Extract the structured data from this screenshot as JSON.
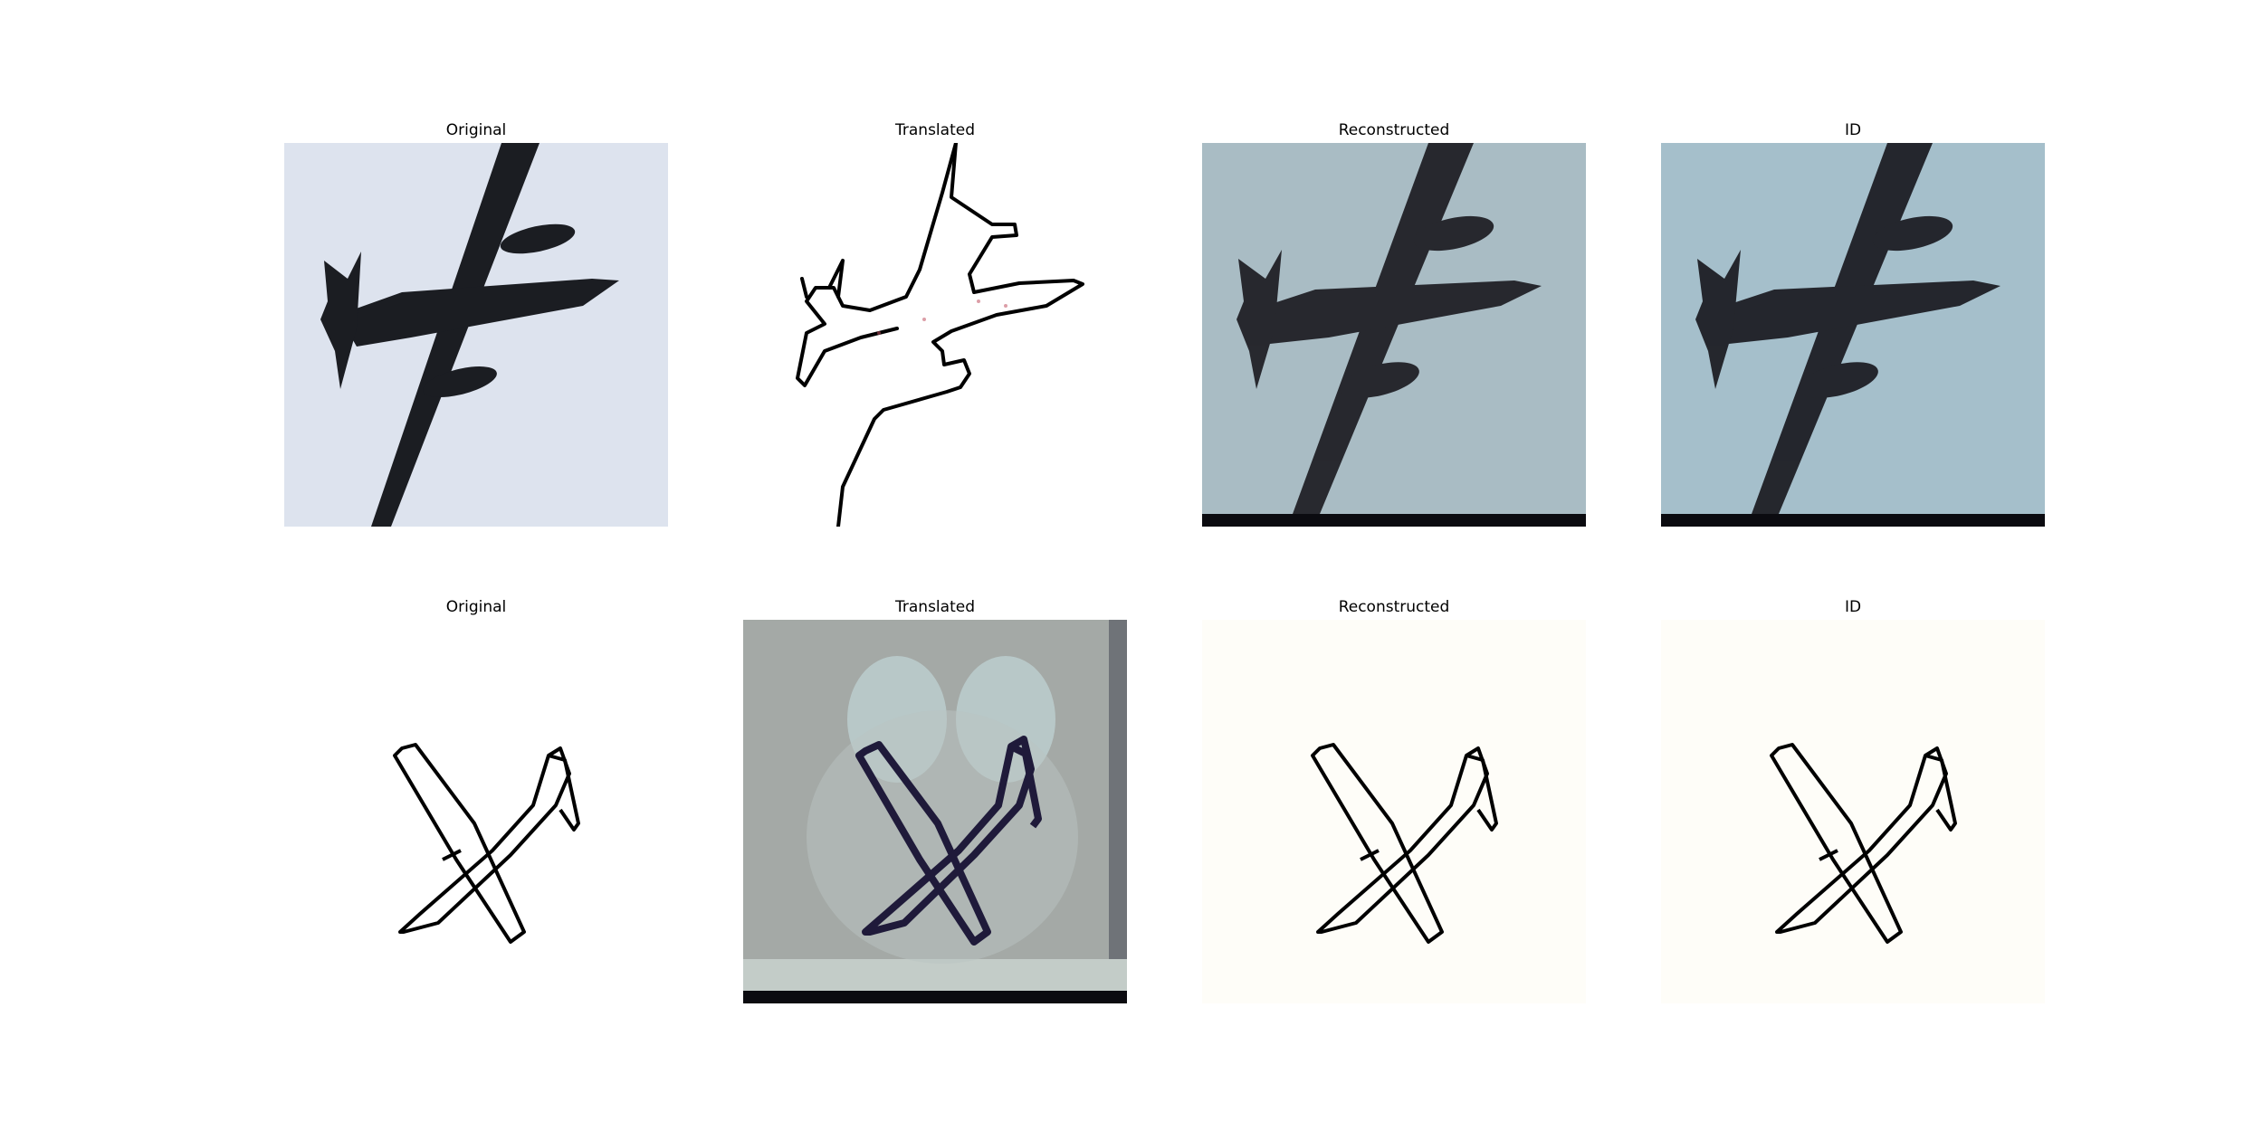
{
  "rows": [
    {
      "panels": [
        {
          "title": "Original"
        },
        {
          "title": "Translated"
        },
        {
          "title": "Reconstructed"
        },
        {
          "title": "ID"
        }
      ]
    },
    {
      "panels": [
        {
          "title": "Original"
        },
        {
          "title": "Translated"
        },
        {
          "title": "Reconstructed"
        },
        {
          "title": "ID"
        }
      ]
    }
  ],
  "colors": {
    "sky": "#dde3ee",
    "silhouette": "#1b1d22",
    "noisy_bg": "#a8b8c0",
    "sketch_line": "#000000",
    "translated_sketch_bg": "#a6aba6"
  },
  "icons": {
    "row1": "airplane-silhouette-photo",
    "row2": "airplane-line-sketch"
  }
}
